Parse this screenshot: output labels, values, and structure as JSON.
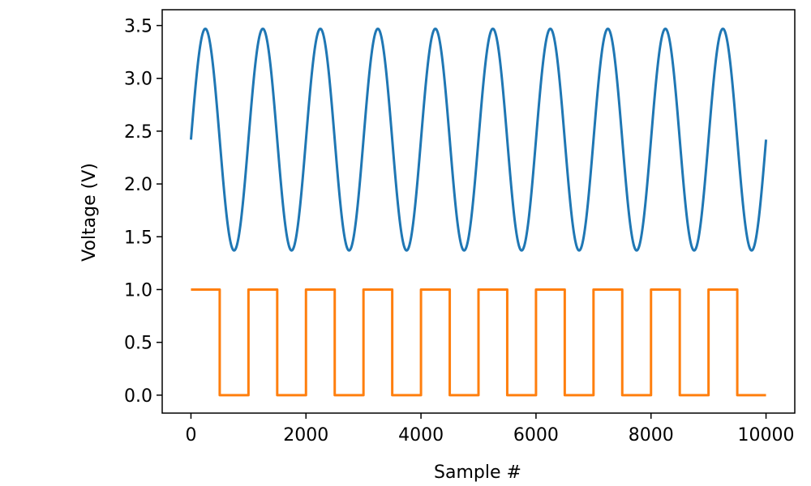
{
  "chart_data": {
    "type": "line",
    "title": "",
    "xlabel": "Sample #",
    "ylabel": "Voltage (V)",
    "xlim": [
      -500,
      10500
    ],
    "ylim": [
      -0.17,
      3.65
    ],
    "xticks": [
      0,
      2000,
      4000,
      6000,
      8000,
      10000
    ],
    "xtick_labels": [
      "0",
      "2000",
      "4000",
      "6000",
      "8000",
      "10000"
    ],
    "yticks": [
      0.0,
      0.5,
      1.0,
      1.5,
      2.0,
      2.5,
      3.0,
      3.5
    ],
    "ytick_labels": [
      "0.0",
      "0.5",
      "1.0",
      "1.5",
      "2.0",
      "2.5",
      "3.0",
      "3.5"
    ],
    "grid": false,
    "legend": "none",
    "series": [
      {
        "color": "#1f77b4",
        "kind": "sine",
        "x_range": [
          0,
          10000
        ],
        "offset": 2.42,
        "amplitude": 1.05,
        "period": 1000,
        "phase_start": 0
      },
      {
        "color": "#ff7f0e",
        "kind": "square",
        "x": [
          0,
          500,
          500,
          1000,
          1000,
          1500,
          1500,
          2000,
          2000,
          2500,
          2500,
          3000,
          3000,
          3500,
          3500,
          4000,
          4000,
          4500,
          4500,
          5000,
          5000,
          5500,
          5500,
          6000,
          6000,
          6500,
          6500,
          7000,
          7000,
          7500,
          7500,
          8000,
          8000,
          8500,
          8500,
          9000,
          9000,
          9500,
          9500,
          10000
        ],
        "y": [
          1,
          1,
          0,
          0,
          1,
          1,
          0,
          0,
          1,
          1,
          0,
          0,
          1,
          1,
          0,
          0,
          1,
          1,
          0,
          0,
          1,
          1,
          0,
          0,
          1,
          1,
          0,
          0,
          1,
          1,
          0,
          0,
          1,
          1,
          0,
          0,
          1,
          1,
          0,
          0
        ]
      }
    ]
  }
}
